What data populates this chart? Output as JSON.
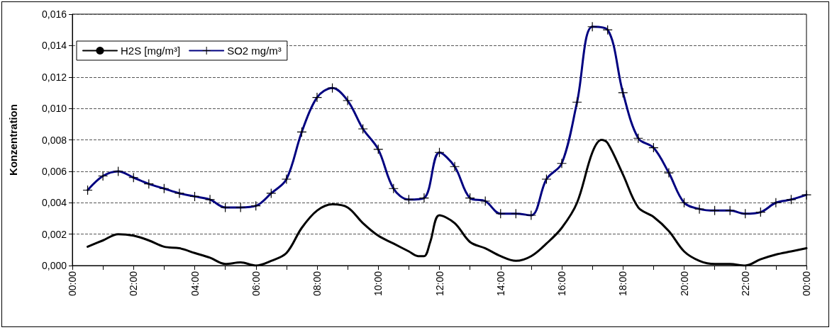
{
  "chart_data": {
    "type": "line",
    "ylabel": "Konzentration",
    "xlim": [
      0,
      24
    ],
    "xticks": [
      {
        "value": 0,
        "label": "00:00"
      },
      {
        "value": 1,
        "label": null
      },
      {
        "value": 2,
        "label": "02:00"
      },
      {
        "value": 3,
        "label": null
      },
      {
        "value": 4,
        "label": "04:00"
      },
      {
        "value": 5,
        "label": null
      },
      {
        "value": 6,
        "label": "06:00"
      },
      {
        "value": 7,
        "label": null
      },
      {
        "value": 8,
        "label": "08:00"
      },
      {
        "value": 9,
        "label": null
      },
      {
        "value": 10,
        "label": "10:00"
      },
      {
        "value": 11,
        "label": null
      },
      {
        "value": 12,
        "label": "12:00"
      },
      {
        "value": 13,
        "label": null
      },
      {
        "value": 14,
        "label": "14:00"
      },
      {
        "value": 15,
        "label": null
      },
      {
        "value": 16,
        "label": "16:00"
      },
      {
        "value": 17,
        "label": null
      },
      {
        "value": 18,
        "label": "18:00"
      },
      {
        "value": 19,
        "label": null
      },
      {
        "value": 20,
        "label": "20:00"
      },
      {
        "value": 21,
        "label": null
      },
      {
        "value": 22,
        "label": "22:00"
      },
      {
        "value": 23,
        "label": null
      },
      {
        "value": 24,
        "label": "00:00"
      }
    ],
    "ylim": [
      0,
      0.016
    ],
    "yticks": [
      {
        "value": 0,
        "label": "0,000"
      },
      {
        "value": 0.002,
        "label": "0,002"
      },
      {
        "value": 0.004,
        "label": "0,004"
      },
      {
        "value": 0.006,
        "label": "0,006"
      },
      {
        "value": 0.008,
        "label": "0,008"
      },
      {
        "value": 0.01,
        "label": "0,010"
      },
      {
        "value": 0.012,
        "label": "0,012"
      },
      {
        "value": 0.014,
        "label": "0,014"
      },
      {
        "value": 0.016,
        "label": "0,016"
      }
    ],
    "grid": "y",
    "legend": "top left",
    "line_style": "solid",
    "series": [
      {
        "name": "H2S [mg/m³]",
        "color": "#000000",
        "marker": "none",
        "x": [
          0.5,
          1,
          1.5,
          2,
          2.5,
          3,
          3.5,
          4,
          4.5,
          5,
          5.5,
          6,
          6.5,
          7,
          7.5,
          8,
          8.5,
          9,
          9.5,
          10,
          10.5,
          11,
          11.3,
          11.5,
          11.7,
          12,
          12.5,
          13,
          13.5,
          14,
          14.5,
          15,
          15.5,
          16,
          16.5,
          17,
          17.3,
          17.5,
          18,
          18.5,
          19,
          19.5,
          20,
          20.5,
          21,
          21.5,
          22,
          22.5,
          23,
          23.5,
          24
        ],
        "values": [
          0.0012,
          0.0016,
          0.002,
          0.0019,
          0.0016,
          0.0012,
          0.0011,
          0.0008,
          0.0005,
          0.0001,
          0.0002,
          0.0,
          0.0003,
          0.0008,
          0.0024,
          0.0035,
          0.0039,
          0.0037,
          0.0027,
          0.0019,
          0.0014,
          0.0009,
          0.0006,
          0.0006,
          0.0015,
          0.0032,
          0.0027,
          0.0015,
          0.0011,
          0.0006,
          0.0003,
          0.0006,
          0.0014,
          0.0024,
          0.004,
          0.0072,
          0.008,
          0.0078,
          0.0058,
          0.0037,
          0.0031,
          0.0022,
          0.0009,
          0.0003,
          0.0001,
          0.0001,
          0.0,
          0.0004,
          0.0007,
          0.0009,
          0.0011
        ]
      },
      {
        "name": "SO2 mg/m³",
        "color": "#000080",
        "marker": "cross",
        "x": [
          0.5,
          1,
          1.5,
          2,
          2.5,
          3,
          3.5,
          4,
          4.5,
          5,
          5.5,
          6,
          6.5,
          7,
          7.5,
          8,
          8.5,
          9,
          9.5,
          10,
          10.5,
          11,
          11.5,
          12,
          12.5,
          13,
          13.5,
          14,
          14.5,
          15,
          15.5,
          16,
          16.5,
          17,
          17.5,
          18,
          18.5,
          19,
          19.5,
          20,
          20.5,
          21,
          21.5,
          22,
          22.5,
          23,
          23.5,
          24
        ],
        "values": [
          0.0048,
          0.0057,
          0.006,
          0.0056,
          0.0052,
          0.0049,
          0.0046,
          0.0044,
          0.0042,
          0.0037,
          0.0037,
          0.0038,
          0.0046,
          0.0055,
          0.0085,
          0.0107,
          0.0113,
          0.0105,
          0.0087,
          0.0074,
          0.0049,
          0.0042,
          0.0043,
          0.0072,
          0.0063,
          0.0043,
          0.0041,
          0.0033,
          0.0033,
          0.0032,
          0.0055,
          0.0065,
          0.0104,
          0.0152,
          0.015,
          0.011,
          0.0081,
          0.0075,
          0.0059,
          0.004,
          0.0036,
          0.0035,
          0.0035,
          0.0033,
          0.0034,
          0.004,
          0.0042,
          0.0045
        ]
      }
    ]
  }
}
